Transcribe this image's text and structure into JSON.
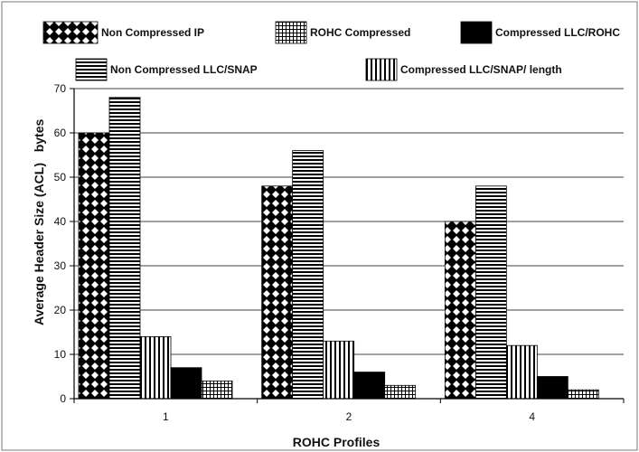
{
  "chart_data": {
    "type": "bar",
    "title": "",
    "xlabel": "ROHC Profiles",
    "ylabel": "Average Header Size (ACL)",
    "yunit": "bytes",
    "categories": [
      "1",
      "2",
      "4"
    ],
    "ylim": [
      0,
      70
    ],
    "yticks": [
      0,
      10,
      20,
      30,
      40,
      50,
      60,
      70
    ],
    "grid": true,
    "legend_position": "top",
    "series": [
      {
        "name": "Non Compressed IP",
        "values": [
          60,
          48,
          40
        ],
        "pattern": "diamond"
      },
      {
        "name": "Non Compressed LLC/SNAP",
        "values": [
          68,
          56,
          48
        ],
        "pattern": "hlines"
      },
      {
        "name": "Compressed LLC/SNAP/ length",
        "values": [
          14,
          13,
          12
        ],
        "pattern": "vlines"
      },
      {
        "name": "Compressed LLC/ROHC",
        "values": [
          7,
          6,
          5
        ],
        "pattern": "solid"
      },
      {
        "name": "ROHC Compressed",
        "values": [
          4,
          3,
          2
        ],
        "pattern": "grid"
      }
    ]
  }
}
